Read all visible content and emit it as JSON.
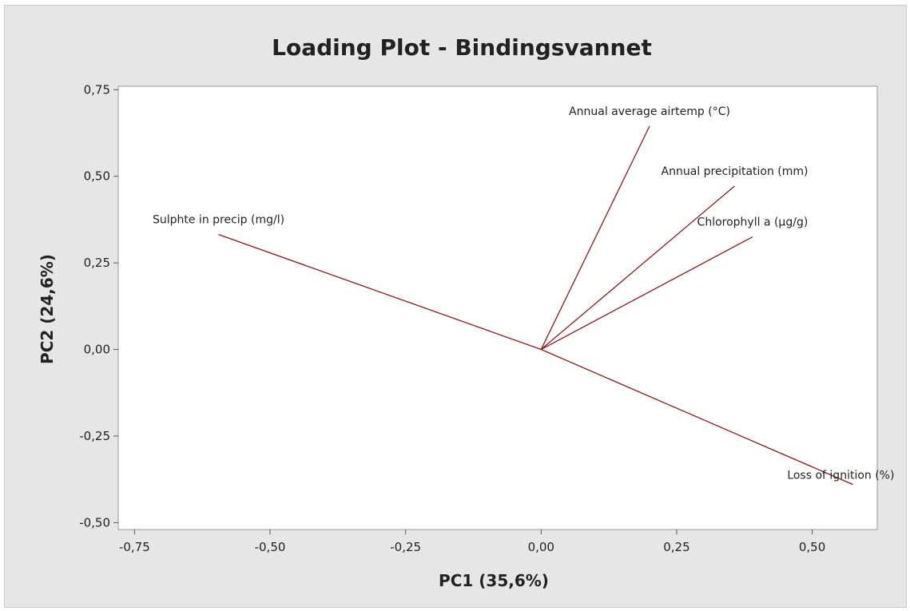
{
  "chart_data": {
    "type": "scatter",
    "subtype": "loading-plot-vectors",
    "title": "Loading Plot - Bindingsvannet",
    "xlabel": "PC1 (35,6%)",
    "ylabel": "PC2 (24,6%)",
    "xlim": [
      -0.78,
      0.62
    ],
    "ylim": [
      -0.52,
      0.76
    ],
    "x_ticks": [
      -0.75,
      -0.5,
      -0.25,
      0.0,
      0.25,
      0.5
    ],
    "x_tick_labels": [
      "-0,75",
      "-0,50",
      "-0,25",
      "0,00",
      "0,25",
      "0,50"
    ],
    "y_ticks": [
      -0.5,
      -0.25,
      0.0,
      0.25,
      0.5,
      0.75
    ],
    "y_tick_labels": [
      "-0,50",
      "-0,25",
      "0,00",
      "0,25",
      "0,50",
      "0,75"
    ],
    "grid": false,
    "vectors": [
      {
        "name": "Annual average airtemp (°C)",
        "x": 0.2,
        "y": 0.645
      },
      {
        "name": "Annual precipitation (mm)",
        "x": 0.357,
        "y": 0.472
      },
      {
        "name": "Chlorophyll a (µg/g)",
        "x": 0.39,
        "y": 0.325
      },
      {
        "name": "Sulphte in precip (mg/l)",
        "x": -0.595,
        "y": 0.332
      },
      {
        "name": "Loss of ignition (%)",
        "x": 0.575,
        "y": -0.39
      }
    ],
    "colors": {
      "vector": "#8b1a1a",
      "background": "#e6e6e6",
      "plot_area": "#ffffff"
    }
  }
}
